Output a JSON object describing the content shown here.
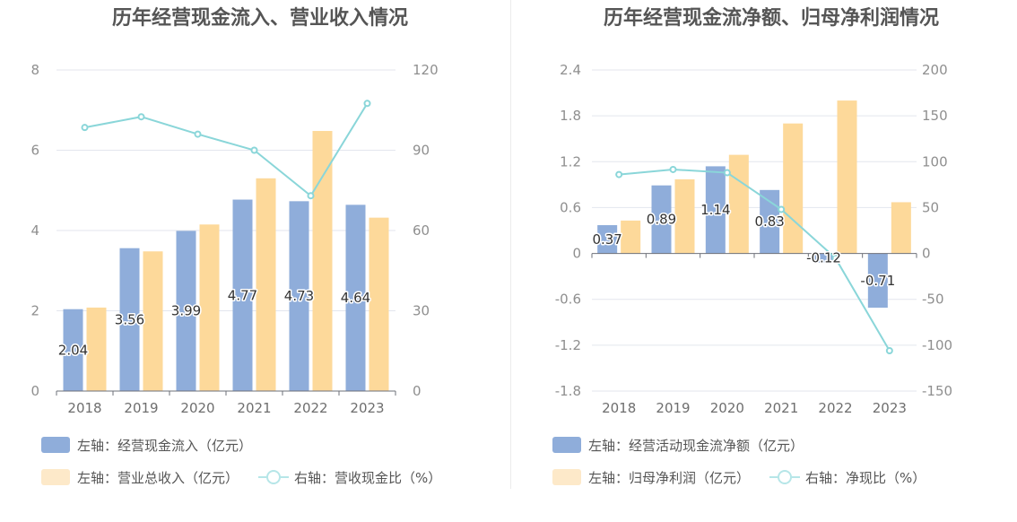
{
  "chart_data": [
    {
      "type": "bar",
      "title": "历年经营现金流入、营业收入情况",
      "categories": [
        "2018",
        "2019",
        "2020",
        "2021",
        "2022",
        "2023"
      ],
      "left_axis": {
        "ylim": [
          0,
          8
        ],
        "ticks": [
          "0",
          "2",
          "4",
          "6",
          "8"
        ]
      },
      "right_axis": {
        "ylim": [
          0,
          120
        ],
        "ticks": [
          "0",
          "30",
          "60",
          "90",
          "120"
        ]
      },
      "series": [
        {
          "name": "左轴：经营现金流入（亿元）",
          "type": "bar",
          "axis": "left",
          "color": "#8fadda",
          "values": [
            2.04,
            3.56,
            3.99,
            4.77,
            4.73,
            4.64
          ],
          "labels": [
            "2.04",
            "3.56",
            "3.99",
            "4.77",
            "4.73",
            "4.64"
          ]
        },
        {
          "name": "左轴：营业总收入（亿元）",
          "type": "bar",
          "axis": "left",
          "color": "#fdd99a",
          "values": [
            2.08,
            3.48,
            4.15,
            5.3,
            6.48,
            4.32
          ]
        },
        {
          "name": "右轴：营收现金比（%）",
          "type": "line",
          "axis": "right",
          "color": "#8ad6d9",
          "values": [
            98.5,
            102.5,
            96.0,
            90.0,
            73.0,
            107.5
          ]
        }
      ],
      "grid": true,
      "legend_position": "bottom"
    },
    {
      "type": "bar",
      "title": "历年经营现金流净额、归母净利润情况",
      "categories": [
        "2018",
        "2019",
        "2020",
        "2021",
        "2022",
        "2023"
      ],
      "left_axis": {
        "ylim": [
          -1.8,
          2.4
        ],
        "ticks": [
          "-1.8",
          "-1.2",
          "-0.6",
          "0",
          "0.6",
          "1.2",
          "1.8",
          "2.4"
        ]
      },
      "right_axis": {
        "ylim": [
          -150,
          200
        ],
        "ticks": [
          "-150",
          "-100",
          "-50",
          "0",
          "50",
          "100",
          "150",
          "200"
        ]
      },
      "series": [
        {
          "name": "左轴：经营活动现金流净额（亿元）",
          "type": "bar",
          "axis": "left",
          "color": "#8fadda",
          "values": [
            0.37,
            0.89,
            1.14,
            0.83,
            -0.12,
            -0.71
          ],
          "labels": [
            "0.37",
            "0.89",
            "1.14",
            "0.83",
            "-0.12",
            "-0.71"
          ]
        },
        {
          "name": "左轴：归母净利润（亿元）",
          "type": "bar",
          "axis": "left",
          "color": "#fdd99a",
          "values": [
            0.43,
            0.97,
            1.29,
            1.7,
            2.0,
            0.67
          ]
        },
        {
          "name": "右轴：净现比（%）",
          "type": "line",
          "axis": "right",
          "color": "#8ad6d9",
          "values": [
            86,
            91.5,
            88,
            48,
            -5,
            -106
          ]
        }
      ],
      "grid": true,
      "legend_position": "bottom"
    }
  ]
}
